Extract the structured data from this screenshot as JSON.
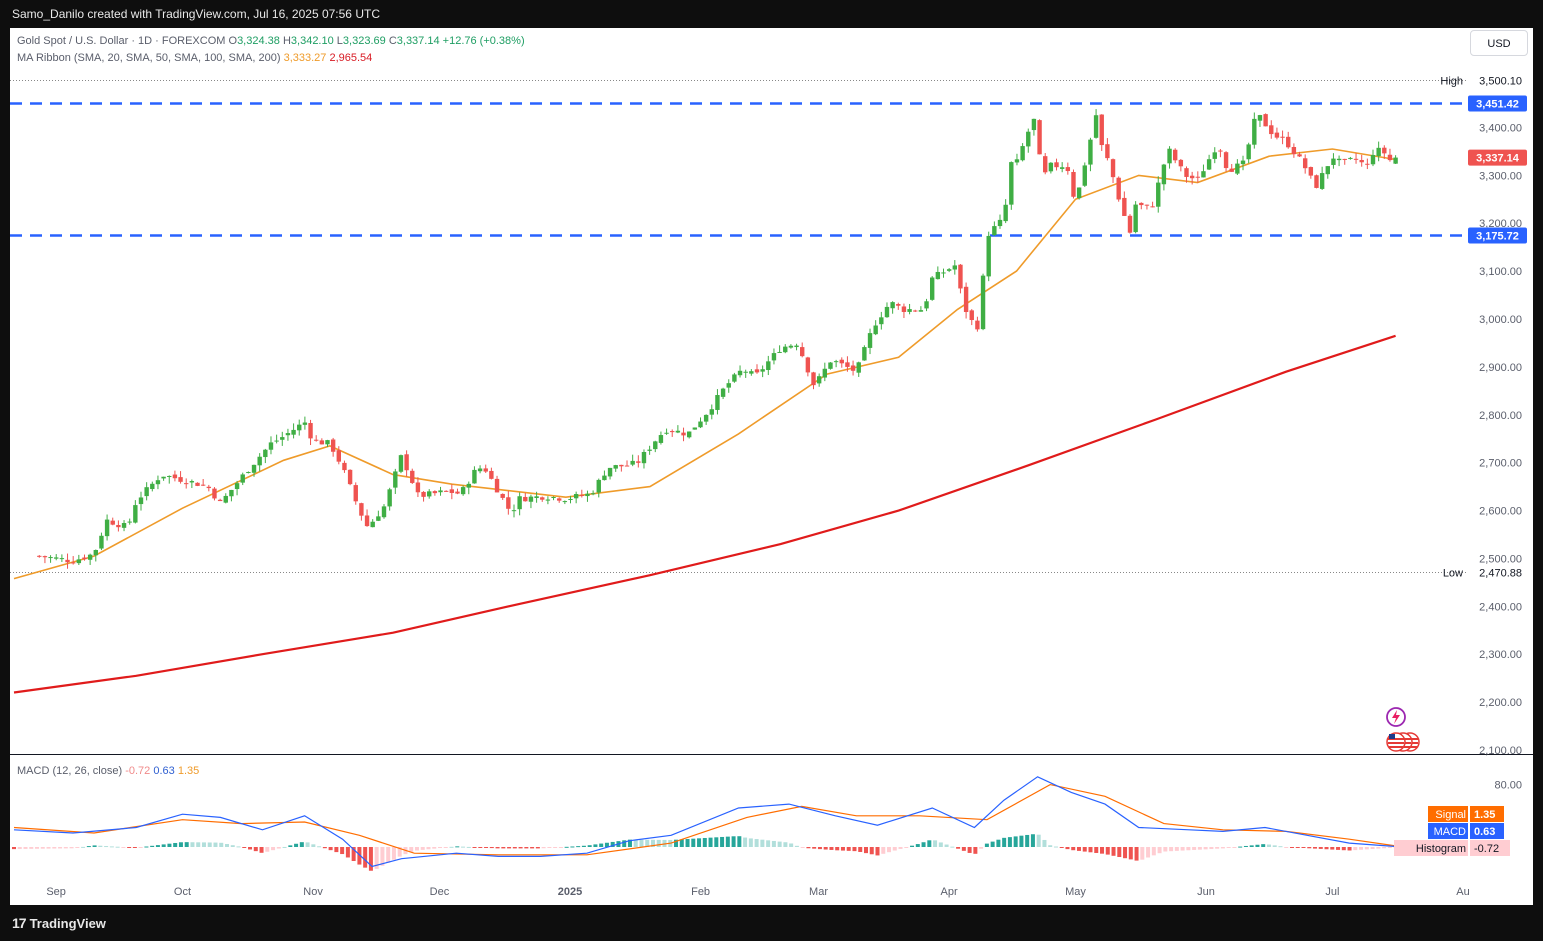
{
  "header": {
    "credit": "Samo_Danilo created with TradingView.com, Jul 16, 2025 07:56 UTC"
  },
  "footer": {
    "brand": "TradingView",
    "logo": "17"
  },
  "currency_button": "USD",
  "legend": {
    "symbol": "Gold Spot / U.S. Dollar · 1D · FOREXCOM",
    "open_label": "O",
    "open": "3,324.38",
    "high_label": "H",
    "high": "3,342.10",
    "low_label": "L",
    "low": "3,323.69",
    "close_label": "C",
    "close": "3,337.14",
    "change": "+12.76 (+0.38%)",
    "ma_label": "MA Ribbon (SMA, 20, SMA, 50, SMA, 100, SMA, 200)",
    "ma20": "3,333.27",
    "ma200": "2,965.54"
  },
  "macd_legend": {
    "label": "MACD (12, 26, close)",
    "hist": "-0.72",
    "macd": "0.63",
    "signal": "1.35"
  },
  "colors": {
    "up": "#26a69a",
    "up_candle": "#3fae44",
    "down": "#ef5350",
    "ma20": "#ef9b2a",
    "ma200": "#e01b1b",
    "level": "#2962ff",
    "macd": "#2962ff",
    "signal": "#ff6d00"
  },
  "icons": [
    "lightning-icon",
    "us-flag-icon"
  ],
  "chart_data": [
    {
      "type": "candlestick",
      "title": "Gold Spot / U.S. Dollar · 1D · FOREXCOM",
      "ylim": [
        2100,
        3520
      ],
      "y_ticks": [
        "2,100.00",
        "2,200.00",
        "2,300.00",
        "2,400.00",
        "2,500.00",
        "2,600.00",
        "2,700.00",
        "2,800.00",
        "2,900.00",
        "3,000.00",
        "3,100.00",
        "3,200.00",
        "3,300.00",
        "3,400.00"
      ],
      "x_ticks": [
        "Sep",
        "Oct",
        "Nov",
        "Dec",
        "2025",
        "Feb",
        "Mar",
        "Apr",
        "May",
        "Jun",
        "Jul",
        "Au"
      ],
      "price_anchors": [
        [
          "2024-08-28",
          2505
        ],
        [
          "2024-09-05",
          2495
        ],
        [
          "2024-09-10",
          2510
        ],
        [
          "2024-09-13",
          2580
        ],
        [
          "2024-09-18",
          2565
        ],
        [
          "2024-09-20",
          2620
        ],
        [
          "2024-09-26",
          2675
        ],
        [
          "2024-10-03",
          2660
        ],
        [
          "2024-10-07",
          2650
        ],
        [
          "2024-10-10",
          2615
        ],
        [
          "2024-10-16",
          2680
        ],
        [
          "2024-10-22",
          2740
        ],
        [
          "2024-10-25",
          2755
        ],
        [
          "2024-10-30",
          2785
        ],
        [
          "2024-11-01",
          2745
        ],
        [
          "2024-11-05",
          2740
        ],
        [
          "2024-11-08",
          2690
        ],
        [
          "2024-11-12",
          2600
        ],
        [
          "2024-11-14",
          2565
        ],
        [
          "2024-11-18",
          2610
        ],
        [
          "2024-11-22",
          2715
        ],
        [
          "2024-11-26",
          2630
        ],
        [
          "2024-12-03",
          2640
        ],
        [
          "2024-12-06",
          2635
        ],
        [
          "2024-12-10",
          2690
        ],
        [
          "2024-12-12",
          2685
        ],
        [
          "2024-12-18",
          2595
        ],
        [
          "2024-12-20",
          2625
        ],
        [
          "2024-12-26",
          2630
        ],
        [
          "2024-12-31",
          2625
        ],
        [
          "2025-01-06",
          2635
        ],
        [
          "2025-01-10",
          2690
        ],
        [
          "2025-01-15",
          2695
        ],
        [
          "2025-01-17",
          2700
        ],
        [
          "2025-01-22",
          2755
        ],
        [
          "2025-01-24",
          2770
        ],
        [
          "2025-01-29",
          2760
        ],
        [
          "2025-02-03",
          2810
        ],
        [
          "2025-02-07",
          2860
        ],
        [
          "2025-02-11",
          2895
        ],
        [
          "2025-02-14",
          2880
        ],
        [
          "2025-02-20",
          2940
        ],
        [
          "2025-02-24",
          2950
        ],
        [
          "2025-02-28",
          2860
        ],
        [
          "2025-03-04",
          2915
        ],
        [
          "2025-03-10",
          2890
        ],
        [
          "2025-03-14",
          2985
        ],
        [
          "2025-03-18",
          3035
        ],
        [
          "2025-03-21",
          3020
        ],
        [
          "2025-03-26",
          3020
        ],
        [
          "2025-03-28",
          3085
        ],
        [
          "2025-04-02",
          3110
        ],
        [
          "2025-04-03",
          3115
        ],
        [
          "2025-04-04",
          3035
        ],
        [
          "2025-04-07",
          2985
        ],
        [
          "2025-04-08",
          2985
        ],
        [
          "2025-04-10",
          3175
        ],
        [
          "2025-04-14",
          3210
        ],
        [
          "2025-04-16",
          3340
        ],
        [
          "2025-04-17",
          3325
        ],
        [
          "2025-04-21",
          3420
        ],
        [
          "2025-04-22",
          3380
        ],
        [
          "2025-04-23",
          3290
        ],
        [
          "2025-04-25",
          3320
        ],
        [
          "2025-04-29",
          3320
        ],
        [
          "2025-05-01",
          3240
        ],
        [
          "2025-05-06",
          3430
        ],
        [
          "2025-05-07",
          3365
        ],
        [
          "2025-05-09",
          3325
        ],
        [
          "2025-05-12",
          3230
        ],
        [
          "2025-05-14",
          3180
        ],
        [
          "2025-05-15",
          3240
        ],
        [
          "2025-05-19",
          3230
        ],
        [
          "2025-05-23",
          3355
        ],
        [
          "2025-05-27",
          3300
        ],
        [
          "2025-05-30",
          3290
        ],
        [
          "2025-06-03",
          3355
        ],
        [
          "2025-06-05",
          3355
        ],
        [
          "2025-06-06",
          3310
        ],
        [
          "2025-06-10",
          3325
        ],
        [
          "2025-06-13",
          3430
        ],
        [
          "2025-06-17",
          3385
        ],
        [
          "2025-06-20",
          3370
        ],
        [
          "2025-06-24",
          3325
        ],
        [
          "2025-06-27",
          3275
        ],
        [
          "2025-07-01",
          3340
        ],
        [
          "2025-07-03",
          3325
        ],
        [
          "2025-07-07",
          3335
        ],
        [
          "2025-07-09",
          3315
        ],
        [
          "2025-07-11",
          3355
        ],
        [
          "2025-07-14",
          3345
        ],
        [
          "2025-07-15",
          3325
        ],
        [
          "2025-07-16",
          3337
        ]
      ],
      "series": [
        {
          "name": "SMA 20",
          "last": 3333.27,
          "points": [
            [
              "2024-08-22",
              2458
            ],
            [
              "2024-09-10",
              2505
            ],
            [
              "2024-10-01",
              2605
            ],
            [
              "2024-10-25",
              2705
            ],
            [
              "2024-11-05",
              2735
            ],
            [
              "2024-11-20",
              2675
            ],
            [
              "2024-12-04",
              2655
            ],
            [
              "2024-12-31",
              2628
            ],
            [
              "2025-01-20",
              2650
            ],
            [
              "2025-02-10",
              2760
            ],
            [
              "2025-03-03",
              2885
            ],
            [
              "2025-03-20",
              2920
            ],
            [
              "2025-04-03",
              3020
            ],
            [
              "2025-04-17",
              3100
            ],
            [
              "2025-05-01",
              3250
            ],
            [
              "2025-05-16",
              3300
            ],
            [
              "2025-05-30",
              3285
            ],
            [
              "2025-06-16",
              3340
            ],
            [
              "2025-07-01",
              3355
            ],
            [
              "2025-07-16",
              3333
            ]
          ]
        },
        {
          "name": "SMA 200",
          "last": 2965.54,
          "points": [
            [
              "2024-08-22",
              2220
            ],
            [
              "2024-09-20",
              2255
            ],
            [
              "2024-10-20",
              2300
            ],
            [
              "2024-11-20",
              2345
            ],
            [
              "2024-12-20",
              2405
            ],
            [
              "2025-01-20",
              2465
            ],
            [
              "2025-02-20",
              2530
            ],
            [
              "2025-03-20",
              2600
            ],
            [
              "2025-04-20",
              2695
            ],
            [
              "2025-05-20",
              2790
            ],
            [
              "2025-06-20",
              2890
            ],
            [
              "2025-07-16",
              2965
            ]
          ]
        }
      ],
      "levels": [
        {
          "label": "High",
          "value": "3,500.10",
          "style": "dotted"
        },
        {
          "label": "Low",
          "value": "2,470.88",
          "style": "dotted"
        },
        {
          "value": "3,451.42",
          "style": "dashed"
        },
        {
          "value": "3,175.72",
          "style": "dashed"
        },
        {
          "value": "3,337.14",
          "style": "last-price"
        }
      ]
    },
    {
      "type": "line",
      "title": "MACD (12, 26, close)",
      "y_ticks": [
        "80.00"
      ],
      "series": [
        {
          "name": "MACD",
          "last": 0.63,
          "points": [
            [
              "2024-08-22",
              22
            ],
            [
              "2024-09-05",
              18
            ],
            [
              "2024-09-20",
              25
            ],
            [
              "2024-10-01",
              42
            ],
            [
              "2024-10-10",
              38
            ],
            [
              "2024-10-20",
              22
            ],
            [
              "2024-10-30",
              40
            ],
            [
              "2024-11-08",
              10
            ],
            [
              "2024-11-15",
              -25
            ],
            [
              "2024-11-22",
              -15
            ],
            [
              "2024-12-05",
              -8
            ],
            [
              "2024-12-15",
              -12
            ],
            [
              "2024-12-25",
              -12
            ],
            [
              "2025-01-05",
              -8
            ],
            [
              "2025-01-15",
              8
            ],
            [
              "2025-01-25",
              15
            ],
            [
              "2025-02-10",
              50
            ],
            [
              "2025-02-22",
              55
            ],
            [
              "2025-03-05",
              40
            ],
            [
              "2025-03-15",
              28
            ],
            [
              "2025-03-28",
              50
            ],
            [
              "2025-04-07",
              25
            ],
            [
              "2025-04-14",
              60
            ],
            [
              "2025-04-22",
              90
            ],
            [
              "2025-04-30",
              70
            ],
            [
              "2025-05-08",
              55
            ],
            [
              "2025-05-16",
              25
            ],
            [
              "2025-05-28",
              22
            ],
            [
              "2025-06-05",
              20
            ],
            [
              "2025-06-15",
              25
            ],
            [
              "2025-06-25",
              15
            ],
            [
              "2025-07-05",
              5
            ],
            [
              "2025-07-16",
              0.63
            ]
          ]
        },
        {
          "name": "Signal",
          "last": 1.35,
          "points": [
            [
              "2024-08-22",
              25
            ],
            [
              "2024-09-10",
              18
            ],
            [
              "2024-10-01",
              35
            ],
            [
              "2024-10-15",
              30
            ],
            [
              "2024-10-30",
              32
            ],
            [
              "2024-11-12",
              15
            ],
            [
              "2024-11-25",
              -8
            ],
            [
              "2024-12-15",
              -10
            ],
            [
              "2025-01-05",
              -10
            ],
            [
              "2025-01-25",
              5
            ],
            [
              "2025-02-12",
              38
            ],
            [
              "2025-02-25",
              52
            ],
            [
              "2025-03-10",
              40
            ],
            [
              "2025-03-25",
              40
            ],
            [
              "2025-04-10",
              35
            ],
            [
              "2025-04-25",
              80
            ],
            [
              "2025-05-08",
              65
            ],
            [
              "2025-05-22",
              30
            ],
            [
              "2025-06-05",
              22
            ],
            [
              "2025-06-20",
              20
            ],
            [
              "2025-07-05",
              10
            ],
            [
              "2025-07-16",
              1.35
            ]
          ]
        },
        {
          "name": "Histogram",
          "last": -0.72
        }
      ]
    }
  ]
}
